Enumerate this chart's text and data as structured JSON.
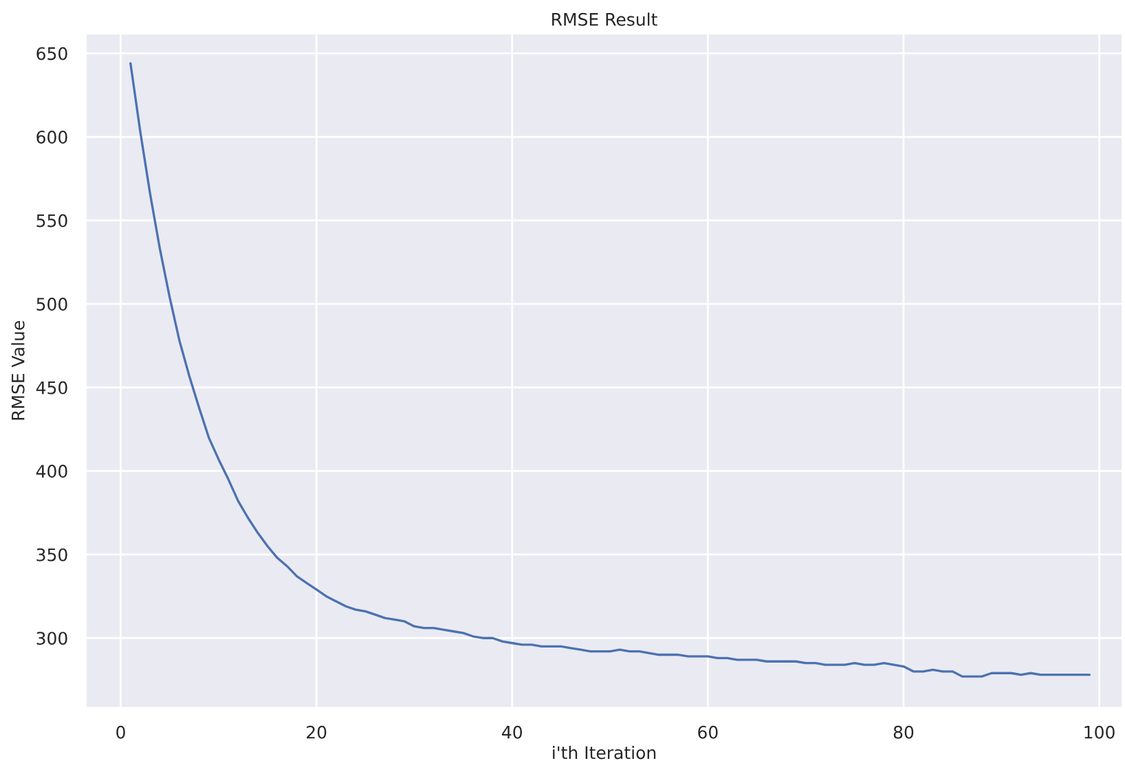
{
  "chart_data": {
    "type": "line",
    "title": "RMSE Result",
    "xlabel": "i'th Iteration",
    "ylabel": "RMSE Value",
    "x": [
      1,
      2,
      3,
      4,
      5,
      6,
      7,
      8,
      9,
      10,
      11,
      12,
      13,
      14,
      15,
      16,
      17,
      18,
      19,
      20,
      21,
      22,
      23,
      24,
      25,
      26,
      27,
      28,
      29,
      30,
      31,
      32,
      33,
      34,
      35,
      36,
      37,
      38,
      39,
      40,
      41,
      42,
      43,
      44,
      45,
      46,
      47,
      48,
      49,
      50,
      51,
      52,
      53,
      54,
      55,
      56,
      57,
      58,
      59,
      60,
      61,
      62,
      63,
      64,
      65,
      66,
      67,
      68,
      69,
      70,
      71,
      72,
      73,
      74,
      75,
      76,
      77,
      78,
      79,
      80,
      81,
      82,
      83,
      84,
      85,
      86,
      87,
      88,
      89,
      90,
      91,
      92,
      93,
      94,
      95,
      96,
      97,
      98,
      99
    ],
    "series": [
      {
        "color": "#4c72b0",
        "values": [
          644,
          603,
          566,
          533,
          504,
          478,
          457,
          438,
          420,
          407,
          395,
          382,
          372,
          363,
          355,
          348,
          343,
          337,
          333,
          329,
          325,
          322,
          319,
          317,
          316,
          314,
          312,
          311,
          310,
          307,
          306,
          306,
          305,
          304,
          303,
          301,
          300,
          300,
          298,
          297,
          296,
          296,
          295,
          295,
          295,
          294,
          293,
          292,
          292,
          292,
          293,
          292,
          292,
          291,
          290,
          290,
          290,
          289,
          289,
          289,
          288,
          288,
          287,
          287,
          287,
          286,
          286,
          286,
          286,
          285,
          285,
          284,
          284,
          284,
          285,
          284,
          284,
          285,
          284,
          283,
          280,
          280,
          281,
          280,
          280,
          277,
          277,
          277,
          279,
          279,
          279,
          278,
          279,
          278,
          278,
          278,
          278,
          278,
          278
        ]
      }
    ],
    "xlim": [
      -3.6,
      102.4
    ],
    "ylim": [
      258,
      662
    ],
    "xticks": [
      0,
      20,
      40,
      60,
      80,
      100
    ],
    "yticks": [
      300,
      350,
      400,
      450,
      500,
      550,
      600,
      650
    ],
    "grid": true,
    "marker": "none",
    "line_style": "solid"
  }
}
